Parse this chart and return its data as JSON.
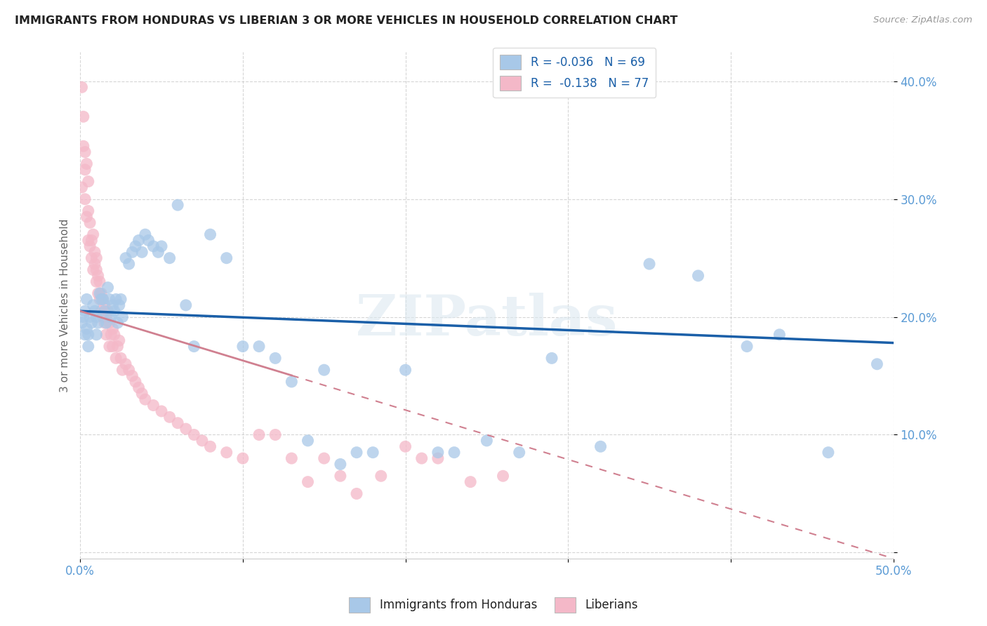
{
  "title": "IMMIGRANTS FROM HONDURAS VS LIBERIAN 3 OR MORE VEHICLES IN HOUSEHOLD CORRELATION CHART",
  "source": "Source: ZipAtlas.com",
  "ylabel": "3 or more Vehicles in Household",
  "xlim": [
    0.0,
    0.5
  ],
  "ylim": [
    -0.005,
    0.425
  ],
  "blue_color": "#a8c8e8",
  "pink_color": "#f4b8c8",
  "trend_blue_color": "#1a5fa8",
  "trend_pink_color": "#d4a8b8",
  "watermark": "ZIPatlas",
  "legend_text_1": "R = -0.036   N = 69",
  "legend_text_2": "R =  -0.138   N = 77",
  "blue_trend_x": [
    0.0,
    0.5
  ],
  "blue_trend_y": [
    0.205,
    0.178
  ],
  "pink_trend_x": [
    0.0,
    0.5
  ],
  "pink_trend_y": [
    0.205,
    -0.005
  ],
  "honduras_x": [
    0.001,
    0.002,
    0.003,
    0.003,
    0.004,
    0.004,
    0.005,
    0.005,
    0.006,
    0.007,
    0.008,
    0.009,
    0.01,
    0.01,
    0.011,
    0.012,
    0.013,
    0.014,
    0.015,
    0.016,
    0.017,
    0.018,
    0.019,
    0.02,
    0.021,
    0.022,
    0.023,
    0.024,
    0.025,
    0.026,
    0.028,
    0.03,
    0.032,
    0.034,
    0.036,
    0.038,
    0.04,
    0.042,
    0.045,
    0.048,
    0.05,
    0.055,
    0.06,
    0.065,
    0.07,
    0.08,
    0.09,
    0.1,
    0.11,
    0.12,
    0.13,
    0.14,
    0.15,
    0.16,
    0.17,
    0.18,
    0.2,
    0.22,
    0.23,
    0.25,
    0.27,
    0.29,
    0.32,
    0.35,
    0.38,
    0.41,
    0.43,
    0.46,
    0.49
  ],
  "honduras_y": [
    0.195,
    0.2,
    0.185,
    0.205,
    0.215,
    0.19,
    0.175,
    0.185,
    0.2,
    0.195,
    0.21,
    0.205,
    0.2,
    0.185,
    0.195,
    0.22,
    0.215,
    0.215,
    0.205,
    0.195,
    0.225,
    0.215,
    0.2,
    0.21,
    0.205,
    0.215,
    0.195,
    0.21,
    0.215,
    0.2,
    0.25,
    0.245,
    0.255,
    0.26,
    0.265,
    0.255,
    0.27,
    0.265,
    0.26,
    0.255,
    0.26,
    0.25,
    0.295,
    0.21,
    0.175,
    0.27,
    0.25,
    0.175,
    0.175,
    0.165,
    0.145,
    0.095,
    0.155,
    0.075,
    0.085,
    0.085,
    0.155,
    0.085,
    0.085,
    0.095,
    0.085,
    0.165,
    0.09,
    0.245,
    0.235,
    0.175,
    0.185,
    0.085,
    0.16
  ],
  "liberian_x": [
    0.001,
    0.001,
    0.002,
    0.002,
    0.003,
    0.003,
    0.003,
    0.004,
    0.004,
    0.005,
    0.005,
    0.005,
    0.006,
    0.006,
    0.007,
    0.007,
    0.008,
    0.008,
    0.009,
    0.009,
    0.01,
    0.01,
    0.01,
    0.011,
    0.011,
    0.012,
    0.012,
    0.013,
    0.013,
    0.014,
    0.014,
    0.015,
    0.015,
    0.016,
    0.016,
    0.017,
    0.018,
    0.018,
    0.019,
    0.02,
    0.02,
    0.021,
    0.022,
    0.023,
    0.024,
    0.025,
    0.026,
    0.028,
    0.03,
    0.032,
    0.034,
    0.036,
    0.038,
    0.04,
    0.045,
    0.05,
    0.055,
    0.06,
    0.065,
    0.07,
    0.075,
    0.08,
    0.09,
    0.1,
    0.11,
    0.12,
    0.13,
    0.14,
    0.15,
    0.16,
    0.17,
    0.185,
    0.2,
    0.21,
    0.22,
    0.24,
    0.26
  ],
  "liberian_y": [
    0.395,
    0.31,
    0.37,
    0.345,
    0.34,
    0.325,
    0.3,
    0.33,
    0.285,
    0.315,
    0.29,
    0.265,
    0.28,
    0.26,
    0.265,
    0.25,
    0.27,
    0.24,
    0.255,
    0.245,
    0.25,
    0.24,
    0.23,
    0.235,
    0.22,
    0.23,
    0.215,
    0.22,
    0.205,
    0.215,
    0.2,
    0.21,
    0.195,
    0.2,
    0.185,
    0.205,
    0.195,
    0.175,
    0.185,
    0.19,
    0.175,
    0.185,
    0.165,
    0.175,
    0.18,
    0.165,
    0.155,
    0.16,
    0.155,
    0.15,
    0.145,
    0.14,
    0.135,
    0.13,
    0.125,
    0.12,
    0.115,
    0.11,
    0.105,
    0.1,
    0.095,
    0.09,
    0.085,
    0.08,
    0.1,
    0.1,
    0.08,
    0.06,
    0.08,
    0.065,
    0.05,
    0.065,
    0.09,
    0.08,
    0.08,
    0.06,
    0.065
  ]
}
